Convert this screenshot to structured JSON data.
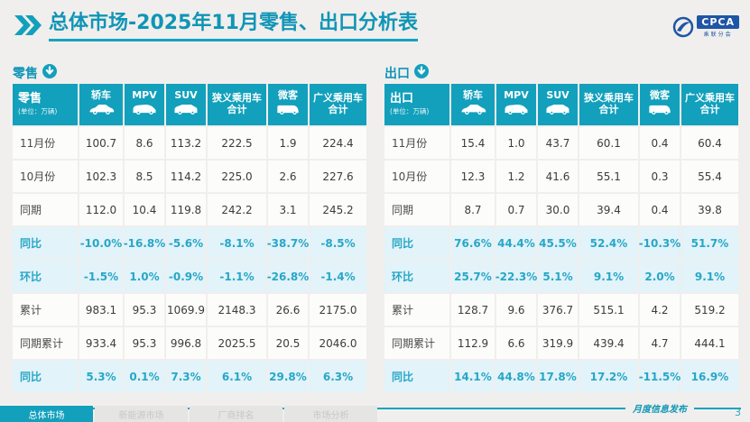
{
  "page": {
    "title": "总体市场-2025年11月零售、出口分析表",
    "page_number": "3",
    "footer_note": "月度信息发布"
  },
  "logo": {
    "main": "CPCA",
    "sub": "乘联分会"
  },
  "colors": {
    "accent_teal": "#12a0bc",
    "title_teal": "#1095b6",
    "highlight_bg": "#e2f3f9",
    "highlight_text": "#27a7c7",
    "logo_blue": "#1f55a5"
  },
  "tables": [
    {
      "section_label": "零售",
      "section_icon": "down-arrow-circle-icon",
      "corner_title": "零售",
      "unit_label": "(单位：万辆)",
      "columns": [
        {
          "label": "轿车",
          "icon": "sedan-icon"
        },
        {
          "label": "MPV",
          "icon": "mpv-icon"
        },
        {
          "label": "SUV",
          "icon": "suv-icon"
        },
        {
          "label": "狭义乘用车 合计",
          "icon": null
        },
        {
          "label": "微客",
          "icon": "microvan-icon"
        },
        {
          "label": "广义乘用车 合计",
          "icon": null
        }
      ],
      "rows": [
        {
          "label": "11月份",
          "highlight": false,
          "values": [
            "100.7",
            "8.6",
            "113.2",
            "222.5",
            "1.9",
            "224.4"
          ]
        },
        {
          "label": "10月份",
          "highlight": false,
          "values": [
            "102.3",
            "8.5",
            "114.2",
            "225.0",
            "2.6",
            "227.6"
          ]
        },
        {
          "label": "同期",
          "highlight": false,
          "values": [
            "112.0",
            "10.4",
            "119.8",
            "242.2",
            "3.1",
            "245.2"
          ]
        },
        {
          "label": "同比",
          "highlight": true,
          "values": [
            "-10.0%",
            "-16.8%",
            "-5.6%",
            "-8.1%",
            "-38.7%",
            "-8.5%"
          ]
        },
        {
          "label": "环比",
          "highlight": true,
          "values": [
            "-1.5%",
            "1.0%",
            "-0.9%",
            "-1.1%",
            "-26.8%",
            "-1.4%"
          ]
        },
        {
          "label": "累计",
          "highlight": false,
          "values": [
            "983.1",
            "95.3",
            "1069.9",
            "2148.3",
            "26.6",
            "2175.0"
          ]
        },
        {
          "label": "同期累计",
          "highlight": false,
          "values": [
            "933.4",
            "95.3",
            "996.8",
            "2025.5",
            "20.5",
            "2046.0"
          ]
        },
        {
          "label": "同比",
          "highlight": true,
          "values": [
            "5.3%",
            "0.1%",
            "7.3%",
            "6.1%",
            "29.8%",
            "6.3%"
          ]
        }
      ]
    },
    {
      "section_label": "出口",
      "section_icon": "down-arrow-circle-icon",
      "corner_title": "出口",
      "unit_label": "(单位：万辆)",
      "columns": [
        {
          "label": "轿车",
          "icon": "sedan-icon"
        },
        {
          "label": "MPV",
          "icon": "mpv-icon"
        },
        {
          "label": "SUV",
          "icon": "suv-icon"
        },
        {
          "label": "狭义乘用车 合计",
          "icon": null
        },
        {
          "label": "微客",
          "icon": "microvan-icon"
        },
        {
          "label": "广义乘用车 合计",
          "icon": null
        }
      ],
      "rows": [
        {
          "label": "11月份",
          "highlight": false,
          "values": [
            "15.4",
            "1.0",
            "43.7",
            "60.1",
            "0.4",
            "60.4"
          ]
        },
        {
          "label": "10月份",
          "highlight": false,
          "values": [
            "12.3",
            "1.2",
            "41.6",
            "55.1",
            "0.3",
            "55.4"
          ]
        },
        {
          "label": "同期",
          "highlight": false,
          "values": [
            "8.7",
            "0.7",
            "30.0",
            "39.4",
            "0.4",
            "39.8"
          ]
        },
        {
          "label": "同比",
          "highlight": true,
          "values": [
            "76.6%",
            "44.4%",
            "45.5%",
            "52.4%",
            "-10.3%",
            "51.7%"
          ]
        },
        {
          "label": "环比",
          "highlight": true,
          "values": [
            "25.7%",
            "-22.3%",
            "5.1%",
            "9.1%",
            "2.0%",
            "9.1%"
          ]
        },
        {
          "label": "累计",
          "highlight": false,
          "values": [
            "128.7",
            "9.6",
            "376.7",
            "515.1",
            "4.2",
            "519.2"
          ]
        },
        {
          "label": "同期累计",
          "highlight": false,
          "values": [
            "112.9",
            "6.6",
            "319.9",
            "439.4",
            "4.7",
            "444.1"
          ]
        },
        {
          "label": "同比",
          "highlight": true,
          "values": [
            "14.1%",
            "44.8%",
            "17.8%",
            "17.2%",
            "-11.5%",
            "16.9%"
          ]
        }
      ]
    }
  ],
  "footer_tabs": [
    {
      "label": "总体市场",
      "active": true
    },
    {
      "label": "新能源市场",
      "active": false
    },
    {
      "label": "厂商排名",
      "active": false
    },
    {
      "label": "市场分析",
      "active": false
    }
  ]
}
